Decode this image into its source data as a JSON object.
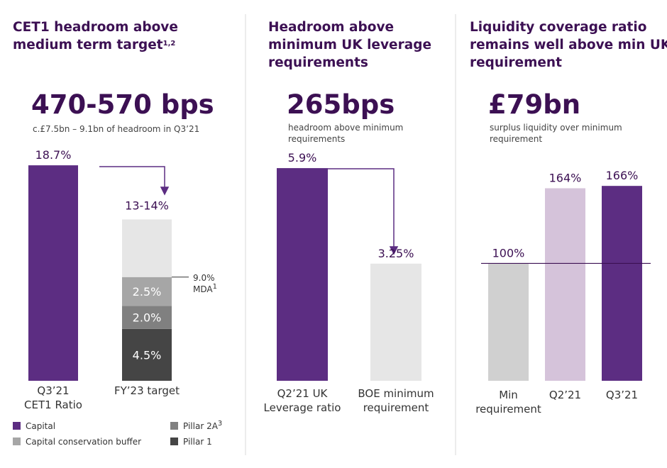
{
  "chart_data": [
    {
      "type": "stacked_bar",
      "title": [
        "CET1 headroom above",
        "medium term target"
      ],
      "title_sup": "1,2",
      "headline": "470-570 bps",
      "subtitle": [
        "c.£7.5bn – 9.1bn of headroom in Q3’21"
      ],
      "categories": [
        [
          "Q3’21",
          "CET1 Ratio"
        ],
        [
          "FY’23 target"
        ]
      ],
      "ylim": [
        0,
        20
      ],
      "series": [
        {
          "name": "Capital",
          "color": "#5c2d82",
          "values": [
            18.7,
            null
          ],
          "value_labels": [
            "18.7%",
            null
          ],
          "label_color": "#3c1053"
        },
        {
          "name": "Pillar 1",
          "name_sup": null,
          "color": "#454545",
          "values": [
            null,
            4.5
          ],
          "value_labels": [
            null,
            "4.5%"
          ],
          "label_color": "#ffffff"
        },
        {
          "name": "Pillar 2A",
          "name_sup": "3",
          "color": "#808080",
          "values": [
            null,
            2.0
          ],
          "value_labels": [
            null,
            "2.0%"
          ],
          "label_color": "#ffffff"
        },
        {
          "name": "Capital conservation buffer",
          "color": "#a6a6a6",
          "values": [
            null,
            2.5
          ],
          "value_labels": [
            null,
            "2.5%"
          ],
          "label_color": "#ffffff"
        },
        {
          "color": "#e6e6e6",
          "values": [
            null,
            5
          ]
        }
      ],
      "total_label": "13-14%",
      "marker": {
        "value": 9.0,
        "label": "9.0%",
        "text": "MDA",
        "sup": "1"
      }
    },
    {
      "type": "bar",
      "title": [
        "Headroom above",
        "minimum UK leverage",
        "requirements"
      ],
      "headline": "265bps",
      "subtitle": [
        "headroom above minimum",
        "requirements"
      ],
      "categories": [
        [
          "Q2’21 UK",
          "Leverage ratio"
        ],
        [
          "BOE minimum",
          "requirement"
        ]
      ],
      "ylim": [
        0,
        6
      ],
      "values": [
        5.9,
        3.25
      ],
      "value_labels": [
        "5.9%",
        "3.25%"
      ],
      "colors": [
        "#5c2d82",
        "#e6e6e6"
      ]
    },
    {
      "type": "bar",
      "title": [
        "Liquidity coverage ratio",
        "remains well above min UK",
        "requirement"
      ],
      "headline": "£79bn",
      "subtitle": [
        "surplus liquidity over minimum",
        "requirement"
      ],
      "categories": [
        [
          "Min",
          "requirement"
        ],
        [
          "Q2’21"
        ],
        [
          "Q3’21"
        ]
      ],
      "ylim": [
        0,
        180
      ],
      "values": [
        100,
        164,
        166
      ],
      "value_labels": [
        "100%",
        "164%",
        "166%"
      ],
      "colors": [
        "#d0d0d0",
        "#d5c3da",
        "#5c2d82"
      ],
      "reference_line": 100
    }
  ]
}
